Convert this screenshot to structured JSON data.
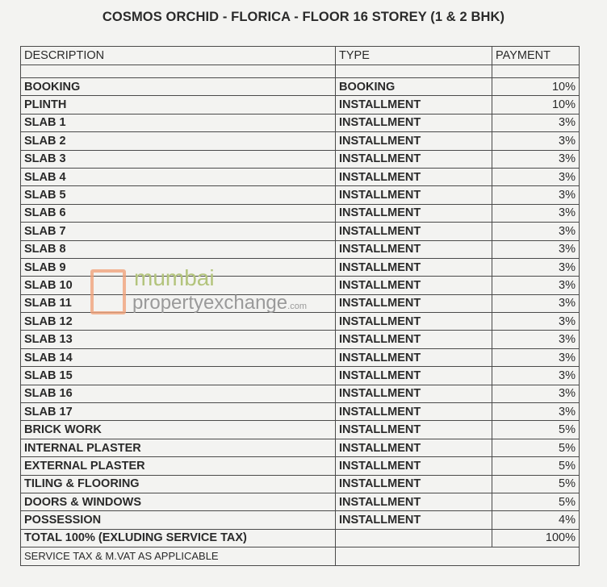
{
  "title": "COSMOS ORCHID - FLORICA  - FLOOR 16 STOREY (1 & 2 BHK)",
  "headers": {
    "description": "DESCRIPTION",
    "type": "TYPE",
    "payment": "PAYMENT"
  },
  "rows": [
    {
      "description": "BOOKING",
      "type": "BOOKING",
      "payment": "10%"
    },
    {
      "description": "PLINTH",
      "type": "INSTALLMENT",
      "payment": "10%"
    },
    {
      "description": "SLAB 1",
      "type": "INSTALLMENT",
      "payment": "3%"
    },
    {
      "description": "SLAB 2",
      "type": "INSTALLMENT",
      "payment": "3%"
    },
    {
      "description": "SLAB 3",
      "type": "INSTALLMENT",
      "payment": "3%"
    },
    {
      "description": "SLAB 4",
      "type": "INSTALLMENT",
      "payment": "3%"
    },
    {
      "description": "SLAB 5",
      "type": "INSTALLMENT",
      "payment": "3%"
    },
    {
      "description": "SLAB 6",
      "type": "INSTALLMENT",
      "payment": "3%"
    },
    {
      "description": "SLAB 7",
      "type": "INSTALLMENT",
      "payment": "3%"
    },
    {
      "description": "SLAB 8",
      "type": "INSTALLMENT",
      "payment": "3%"
    },
    {
      "description": "SLAB 9",
      "type": "INSTALLMENT",
      "payment": "3%"
    },
    {
      "description": "SLAB 10",
      "type": "INSTALLMENT",
      "payment": "3%"
    },
    {
      "description": "SLAB 11",
      "type": "INSTALLMENT",
      "payment": "3%"
    },
    {
      "description": "SLAB 12",
      "type": "INSTALLMENT",
      "payment": "3%"
    },
    {
      "description": "SLAB 13",
      "type": "INSTALLMENT",
      "payment": "3%"
    },
    {
      "description": "SLAB 14",
      "type": "INSTALLMENT",
      "payment": "3%"
    },
    {
      "description": "SLAB 15",
      "type": "INSTALLMENT",
      "payment": "3%"
    },
    {
      "description": "SLAB 16",
      "type": "INSTALLMENT",
      "payment": "3%"
    },
    {
      "description": "SLAB 17",
      "type": "INSTALLMENT",
      "payment": "3%"
    },
    {
      "description": "BRICK WORK",
      "type": "INSTALLMENT",
      "payment": "5%"
    },
    {
      "description": "INTERNAL PLASTER",
      "type": "INSTALLMENT",
      "payment": "5%"
    },
    {
      "description": "EXTERNAL PLASTER",
      "type": "INSTALLMENT",
      "payment": "5%"
    },
    {
      "description": "TILING & FLOORING",
      "type": "INSTALLMENT",
      "payment": "5%"
    },
    {
      "description": "DOORS & WINDOWS",
      "type": "INSTALLMENT",
      "payment": "5%"
    },
    {
      "description": "POSSESSION",
      "type": "INSTALLMENT",
      "payment": "4%"
    }
  ],
  "total": {
    "description": "TOTAL 100% (EXLUDING SERVICE TAX)",
    "payment": "100%"
  },
  "note": "SERVICE TAX & M.VAT AS APPLICABLE",
  "watermark": {
    "line1": "mumbai",
    "line2": "propertyexchange",
    "suffix": ".com"
  }
}
